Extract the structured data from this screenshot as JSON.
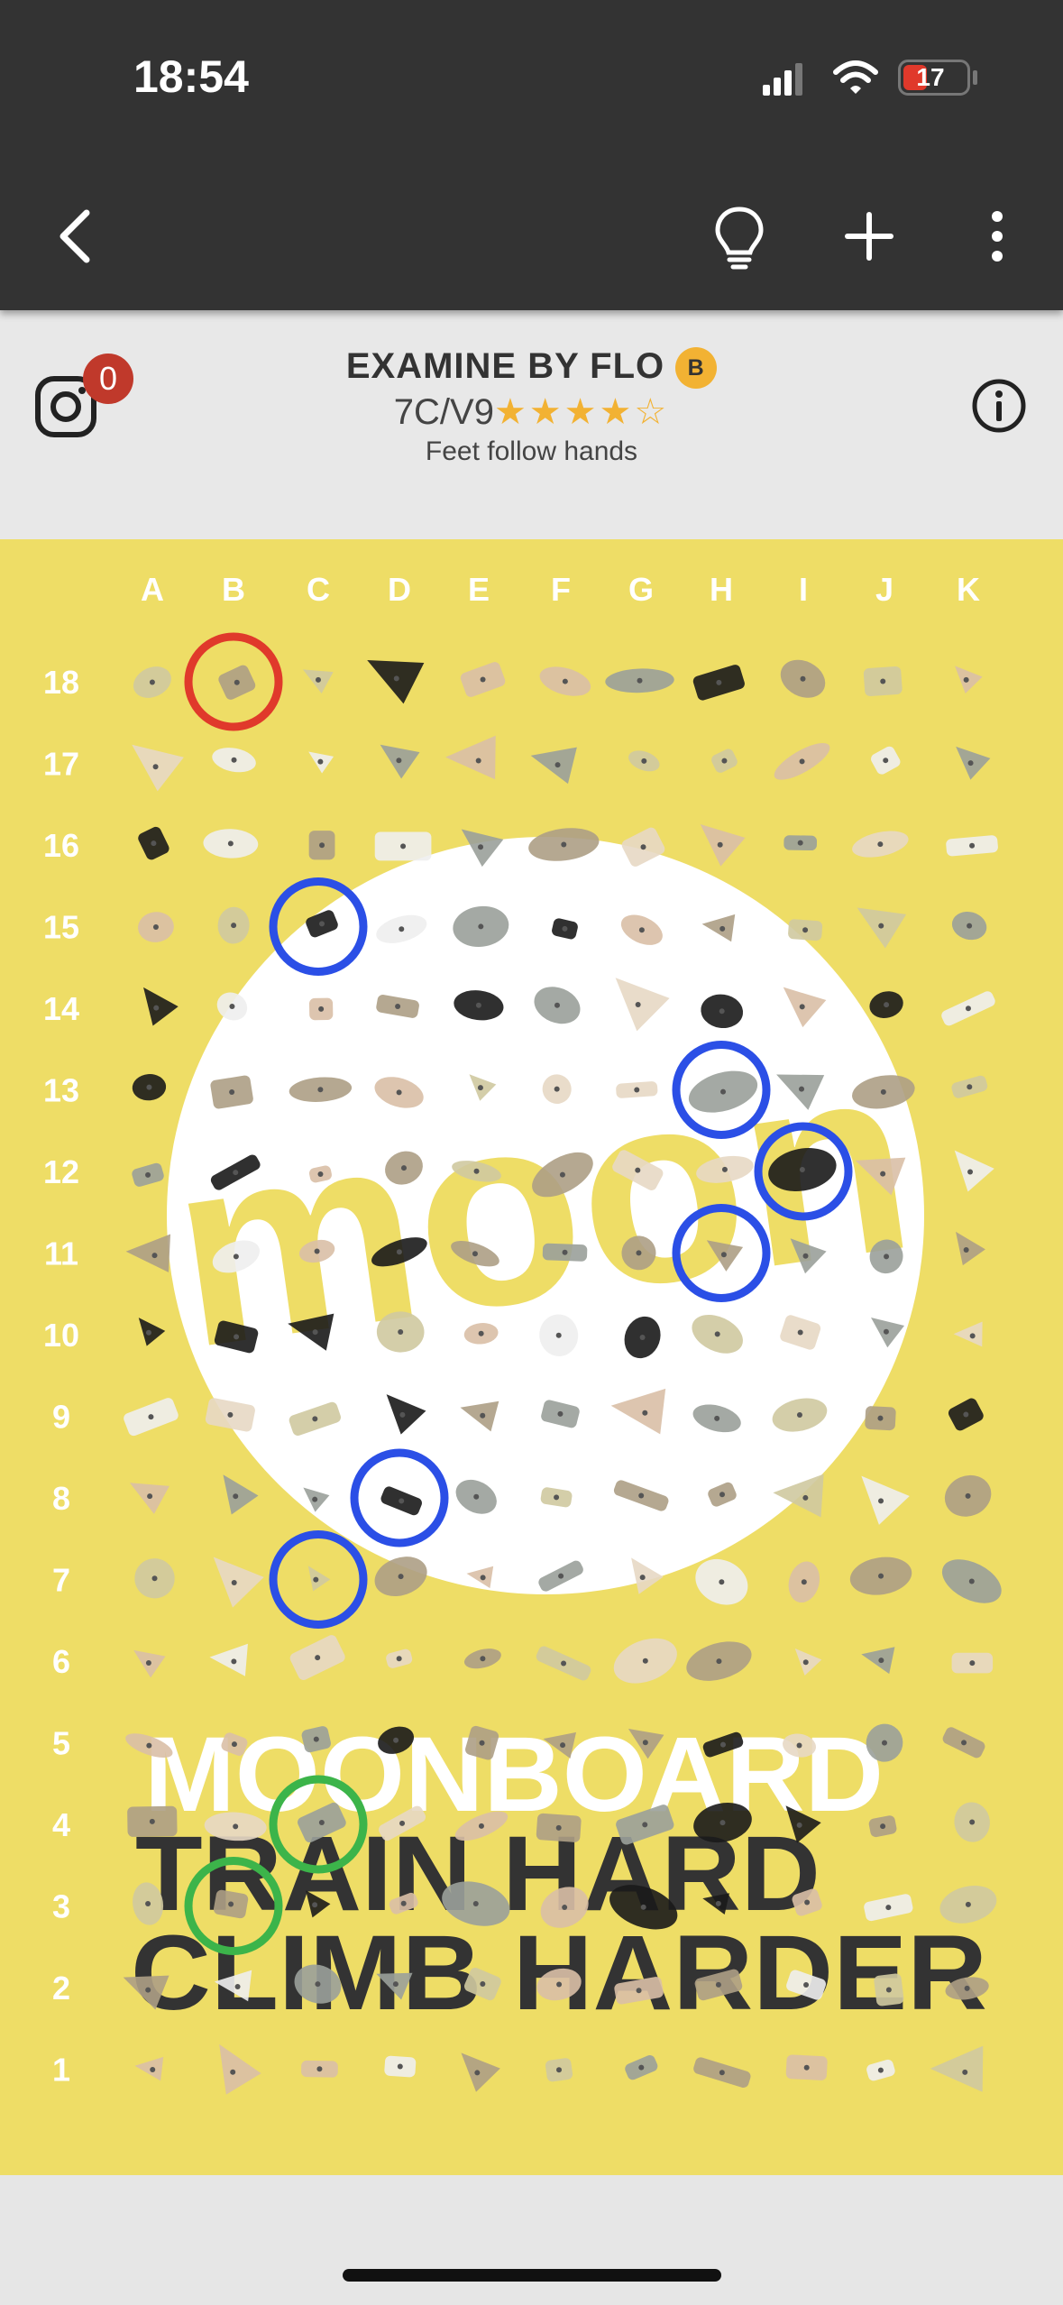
{
  "status_bar": {
    "time": "18:54",
    "battery": "17"
  },
  "nav": {
    "back": "back-arrow",
    "hint": "lightbulb-icon",
    "add": "plus-icon",
    "more": "more-vert-icon"
  },
  "problem": {
    "name": "EXAMINE BY FLO",
    "badge": "B",
    "grade": "7C/V9",
    "stars": "★★★★☆",
    "description": "Feet follow hands"
  },
  "instagram": {
    "count": "0"
  },
  "board": {
    "columns": [
      "A",
      "B",
      "C",
      "D",
      "E",
      "F",
      "G",
      "H",
      "I",
      "J",
      "K"
    ],
    "rows": [
      "18",
      "17",
      "16",
      "15",
      "14",
      "13",
      "12",
      "11",
      "10",
      "9",
      "8",
      "7",
      "6",
      "5",
      "4",
      "3",
      "2",
      "1"
    ],
    "background_text": {
      "logo": "moon",
      "line1": "MOONBOARD",
      "line2": "TRAIN HARD",
      "line3": "CLIMB HARDER"
    },
    "marker_colors": {
      "start": "#3cb44a",
      "intermediate": "#2b4fe6",
      "finish": "#e0392b"
    },
    "selected_holds": [
      {
        "hold": "B18",
        "role": "finish"
      },
      {
        "hold": "C15",
        "role": "intermediate"
      },
      {
        "hold": "H13",
        "role": "intermediate"
      },
      {
        "hold": "I12",
        "role": "intermediate"
      },
      {
        "hold": "H11",
        "role": "intermediate"
      },
      {
        "hold": "D8",
        "role": "intermediate"
      },
      {
        "hold": "C7",
        "role": "intermediate"
      },
      {
        "hold": "C4",
        "role": "start"
      },
      {
        "hold": "B3",
        "role": "start"
      }
    ]
  }
}
